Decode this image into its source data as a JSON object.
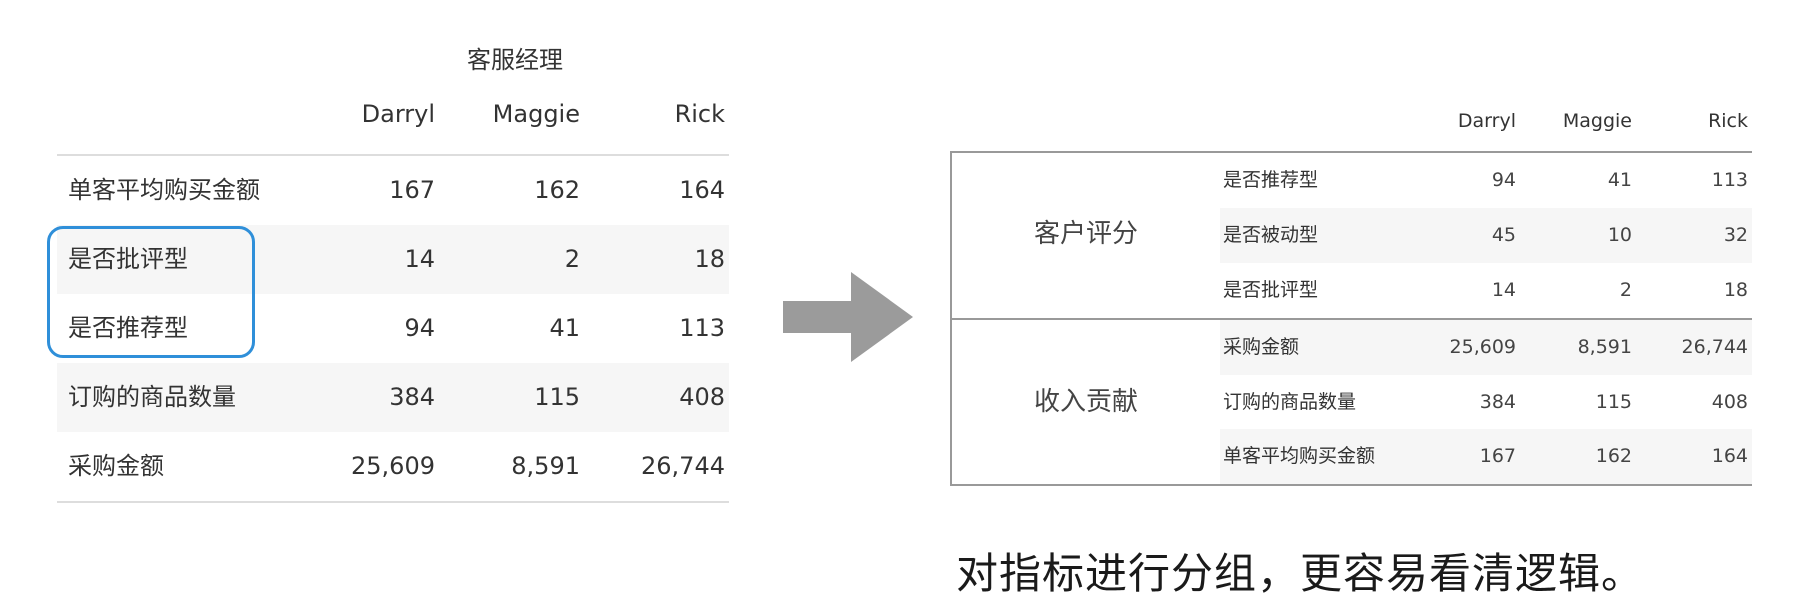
{
  "left_table": {
    "group_header": "客服经理",
    "columns": [
      "Darryl",
      "Maggie",
      "Rick"
    ],
    "rows": [
      {
        "label": "单客平均购买金额",
        "values": [
          "167",
          "162",
          "164"
        ]
      },
      {
        "label": "是否批评型",
        "values": [
          "14",
          "2",
          "18"
        ]
      },
      {
        "label": "是否推荐型",
        "values": [
          "94",
          "41",
          "113"
        ]
      },
      {
        "label": "订购的商品数量",
        "values": [
          "384",
          "115",
          "408"
        ]
      },
      {
        "label": "采购金额",
        "values": [
          "25,609",
          "8,591",
          "26,744"
        ]
      }
    ],
    "highlight_color": "#2f8fd9"
  },
  "arrow": {
    "color": "#9b9b9b"
  },
  "right_table": {
    "columns": [
      "Darryl",
      "Maggie",
      "Rick"
    ],
    "groups": [
      {
        "name": "客户评分",
        "rows": [
          {
            "label": "是否推荐型",
            "values": [
              "94",
              "41",
              "113"
            ]
          },
          {
            "label": "是否被动型",
            "values": [
              "45",
              "10",
              "32"
            ]
          },
          {
            "label": "是否批评型",
            "values": [
              "14",
              "2",
              "18"
            ]
          }
        ]
      },
      {
        "name": "收入贡献",
        "rows": [
          {
            "label": "采购金额",
            "values": [
              "25,609",
              "8,591",
              "26,744"
            ]
          },
          {
            "label": "订购的商品数量",
            "values": [
              "384",
              "115",
              "408"
            ]
          },
          {
            "label": "单客平均购买金额",
            "values": [
              "167",
              "162",
              "164"
            ]
          }
        ]
      }
    ]
  },
  "caption": "对指标进行分组，更容易看清逻辑。"
}
